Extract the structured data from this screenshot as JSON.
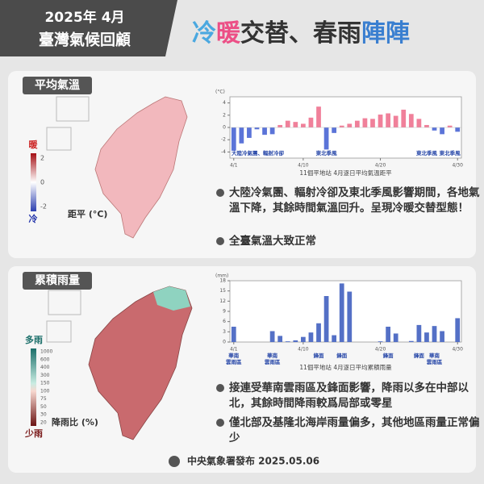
{
  "header": {
    "year": "2025年 4月",
    "title": "臺灣氣候回顧"
  },
  "headline": [
    {
      "text": "冷",
      "color": "#4aa8e0"
    },
    {
      "text": "暖",
      "color": "#ec4f86"
    },
    {
      "text": "交替、春雨",
      "color": "#333333"
    },
    {
      "text": "陣陣",
      "color": "#3a7fd0"
    }
  ],
  "sections": [
    {
      "title": "平均氣溫",
      "legend": {
        "top": "暖",
        "bottom": "冷",
        "unit": "距平 (°C)",
        "ticks": [
          "2",
          "0",
          "-2"
        ]
      },
      "bullets": [
        "大陸冷氣團、輻射冷卻及東北季風影響期間，各地氣溫下降，其餘時間氣溫回升。呈現冷暖交替型態！",
        "全臺氣溫大致正常"
      ]
    },
    {
      "title": "累積雨量",
      "legend": {
        "top": "多雨",
        "bottom": "少雨",
        "unit": "降雨比 (%)",
        "ticks": [
          "1000",
          "600",
          "400",
          "300",
          "150",
          "100",
          "75",
          "50",
          "30",
          "20"
        ]
      },
      "bullets": [
        "接連受華南雲雨區及鋒面影響，降雨以多在中部以北，其餘時間降雨較爲局部或零星",
        "僅北部及基隆北海岸雨量偏多，其他地區雨量正常偏少"
      ]
    }
  ],
  "chart_data": [
    {
      "type": "bar",
      "unit": "(°C)",
      "caption": "11個平地站 4月逐日平均氣溫距平",
      "x": [
        1,
        2,
        3,
        4,
        5,
        6,
        7,
        8,
        9,
        10,
        11,
        12,
        13,
        14,
        15,
        16,
        17,
        18,
        19,
        20,
        21,
        22,
        23,
        24,
        25,
        26,
        27,
        28,
        29,
        30
      ],
      "values": [
        -3.8,
        -2.6,
        -1.7,
        -0.3,
        -1.2,
        -1.1,
        0.4,
        1.1,
        0.9,
        0.6,
        1.6,
        3.4,
        -3.6,
        -0.9,
        0.3,
        0.6,
        1.1,
        1.5,
        1.4,
        2.1,
        2.3,
        1.9,
        2.9,
        2.2,
        1.4,
        0.4,
        -0.5,
        -1.1,
        0.3,
        -0.7
      ],
      "positive_color": "#f0809a",
      "negative_color": "#5b74d8",
      "xlim": [
        0.5,
        30.5
      ],
      "xticks": [
        {
          "value": 1,
          "label": "4/1"
        },
        {
          "value": 10,
          "label": "4/10"
        },
        {
          "value": 20,
          "label": "4/20"
        },
        {
          "value": 30,
          "label": "4/30"
        }
      ],
      "ylim": [
        -5,
        5
      ],
      "yticks": [
        -4,
        -2,
        0,
        2,
        4
      ],
      "grid": false,
      "annotations": [
        {
          "lines": [
            "大陸冷氣團、輻射冷卻"
          ],
          "x": 1
        },
        {
          "lines": [
            "東北季風"
          ],
          "x": 13
        },
        {
          "lines": [
            "東北季風"
          ],
          "x": 26
        },
        {
          "lines": [
            "東北季風"
          ],
          "x": 29
        }
      ]
    },
    {
      "type": "bar",
      "unit": "(mm)",
      "caption": "11個平地站 4月逐日平均累積雨量",
      "x": [
        1,
        2,
        3,
        4,
        5,
        6,
        7,
        8,
        9,
        10,
        11,
        12,
        13,
        14,
        15,
        16,
        17,
        18,
        19,
        20,
        21,
        22,
        23,
        24,
        25,
        26,
        27,
        28,
        29,
        30
      ],
      "values": [
        4.5,
        0,
        0,
        0,
        0,
        3.2,
        1.8,
        0.2,
        0.5,
        1.5,
        2.8,
        5.5,
        13.5,
        2,
        17.2,
        14.8,
        0,
        0,
        0,
        0.2,
        4.5,
        2.5,
        0,
        0.3,
        5,
        2.8,
        4.7,
        3.2,
        0,
        7
      ],
      "color": "#5470c6",
      "xlim": [
        0.5,
        30.5
      ],
      "xticks": [
        {
          "value": 1,
          "label": "4/1"
        },
        {
          "value": 10,
          "label": "4/10"
        },
        {
          "value": 20,
          "label": "4/20"
        },
        {
          "value": 30,
          "label": "4/30"
        }
      ],
      "ylim": [
        0,
        18
      ],
      "yticks": [
        0,
        3,
        6,
        9,
        12,
        15,
        18
      ],
      "grid": false,
      "annotations": [
        {
          "lines": [
            "華南",
            "雲雨區"
          ],
          "x": 1
        },
        {
          "lines": [
            "華南",
            "雲雨區"
          ],
          "x": 6
        },
        {
          "lines": [
            "鋒面"
          ],
          "x": 12
        },
        {
          "lines": [
            "鋒面"
          ],
          "x": 15
        },
        {
          "lines": [
            "鋒面"
          ],
          "x": 21
        },
        {
          "lines": [
            "鋒面"
          ],
          "x": 25
        },
        {
          "lines": [
            "華南",
            "雲雨區"
          ],
          "x": 27
        }
      ]
    }
  ],
  "footer": "中央氣象署發布 2025.05.06"
}
